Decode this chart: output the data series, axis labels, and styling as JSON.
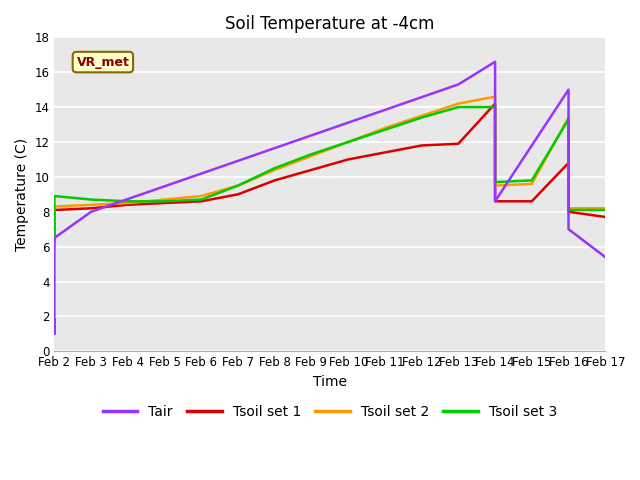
{
  "title": "Soil Temperature at -4cm",
  "xlabel": "Time",
  "ylabel": "Temperature (C)",
  "annotation_label": "VR_met",
  "ylim": [
    0,
    18
  ],
  "x_labels": [
    "Feb 2",
    "Feb 3",
    "Feb 4",
    "Feb 5",
    "Feb 6",
    "Feb 7",
    "Feb 8",
    "Feb 9",
    "Feb 10",
    "Feb 11",
    "Feb 12",
    "Feb 13",
    "Feb 14",
    "Feb 15",
    "Feb 16",
    "Feb 17"
  ],
  "x_values": [
    2,
    3,
    4,
    5,
    6,
    7,
    8,
    9,
    10,
    11,
    12,
    13,
    14,
    15,
    16,
    17
  ],
  "series": {
    "Tair": {
      "x": [
        2,
        2,
        2,
        3,
        13,
        14,
        14,
        16,
        16,
        17
      ],
      "y": [
        1.8,
        1.0,
        6.5,
        8.0,
        15.3,
        16.6,
        8.6,
        15.0,
        7.0,
        5.4
      ],
      "color": "#9933ff",
      "linewidth": 1.8,
      "zorder": 4
    },
    "Tsoil set 1": {
      "x": [
        2,
        2,
        3,
        4,
        5,
        6,
        7,
        8,
        9,
        10,
        11,
        12,
        13,
        14,
        14,
        15,
        16,
        16,
        17
      ],
      "y": [
        6.3,
        8.1,
        8.2,
        8.4,
        8.5,
        8.6,
        9.0,
        9.8,
        10.4,
        11.0,
        11.4,
        11.8,
        11.9,
        14.2,
        8.6,
        8.6,
        10.8,
        8.0,
        7.7
      ],
      "color": "#dd0000",
      "linewidth": 1.8,
      "zorder": 3
    },
    "Tsoil set 2": {
      "x": [
        2,
        2,
        3,
        4,
        5,
        6,
        7,
        8,
        9,
        10,
        11,
        12,
        13,
        14,
        14,
        15,
        16,
        16,
        17
      ],
      "y": [
        6.0,
        8.3,
        8.4,
        8.5,
        8.7,
        8.9,
        9.5,
        10.4,
        11.2,
        12.0,
        12.8,
        13.5,
        14.2,
        14.6,
        9.5,
        9.6,
        13.4,
        8.2,
        8.2
      ],
      "color": "#ff9900",
      "linewidth": 1.8,
      "zorder": 3
    },
    "Tsoil set 3": {
      "x": [
        2,
        2,
        3,
        4,
        5,
        6,
        7,
        8,
        9,
        10,
        11,
        12,
        13,
        14,
        14,
        15,
        16,
        16,
        17
      ],
      "y": [
        6.6,
        8.9,
        8.7,
        8.6,
        8.6,
        8.7,
        9.5,
        10.5,
        11.3,
        12.0,
        12.7,
        13.4,
        14.0,
        14.0,
        9.7,
        9.8,
        13.3,
        8.1,
        8.1
      ],
      "color": "#00cc00",
      "linewidth": 1.8,
      "zorder": 3
    }
  },
  "legend_order": [
    "Tair",
    "Tsoil set 1",
    "Tsoil set 2",
    "Tsoil set 3"
  ],
  "fig_bg_color": "#ffffff",
  "plot_bg_color": "#e8e8e8",
  "grid_color": "#ffffff",
  "title_fontsize": 12,
  "label_fontsize": 10,
  "tick_fontsize": 8.5,
  "legend_fontsize": 10
}
